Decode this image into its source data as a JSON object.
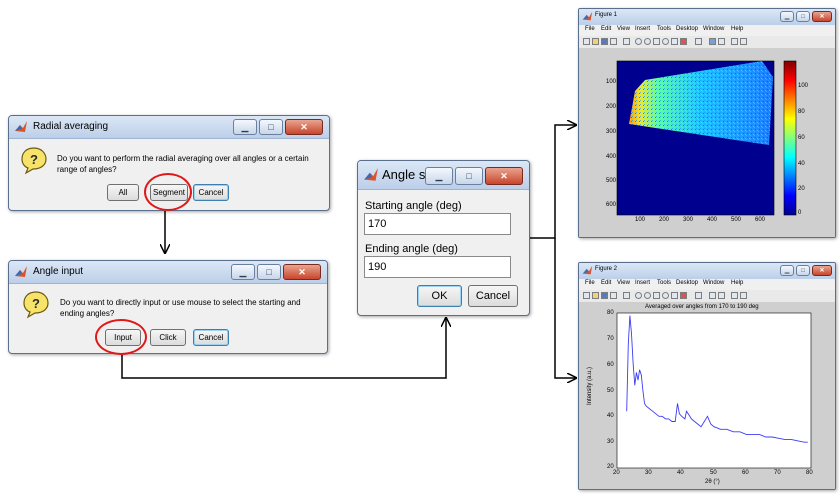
{
  "dialog_radial": {
    "title": "Radial averaging",
    "message_line1": "Do you want to perform the radial averaging over all angles or a certain",
    "message_line2": "range of angles?",
    "buttons": [
      "All",
      "Segment",
      "Cancel"
    ]
  },
  "dialog_angle_input": {
    "title": "Angle input",
    "message_line1": "Do you want to directly input or use mouse to select the starting and",
    "message_line2": "ending angles?",
    "buttons": [
      "Input",
      "Click",
      "Cancel"
    ]
  },
  "dialog_angle_select": {
    "title": "Angle s...",
    "start_label": "Starting angle (deg)",
    "start_value": "170",
    "end_label": "Ending angle (deg)",
    "end_value": "190",
    "ok_label": "OK",
    "cancel_label": "Cancel"
  },
  "figure1": {
    "title": "Figure 1",
    "menu": [
      "File",
      "Edit",
      "View",
      "Insert",
      "Tools",
      "Desktop",
      "Window",
      "Help"
    ],
    "y_ticks": [
      "100",
      "200",
      "300",
      "400",
      "500",
      "600"
    ],
    "x_ticks": [
      "100",
      "200",
      "300",
      "400",
      "500",
      "600"
    ],
    "colorbar_ticks": [
      "100",
      "80",
      "60",
      "40",
      "20",
      "0"
    ],
    "colormap": "jet"
  },
  "figure2": {
    "title": "Figure 2",
    "menu": [
      "File",
      "Edit",
      "View",
      "Insert",
      "Tools",
      "Desktop",
      "Window",
      "Help"
    ],
    "plot_title": "Averaged over angles from 170 to 190 deg",
    "ylabel": "Intensity (a.u.)",
    "xlabel": "2θ (°)",
    "y_ticks": [
      "80",
      "70",
      "60",
      "50",
      "40",
      "30",
      "20"
    ],
    "x_ticks": [
      "20",
      "30",
      "40",
      "50",
      "60",
      "70",
      "80"
    ]
  },
  "chart_data": {
    "type": "line",
    "title": "Averaged over angles from 170 to 190 deg",
    "xlabel": "2θ (°)",
    "ylabel": "Intensity (a.u.)",
    "xlim": [
      20,
      80
    ],
    "ylim": [
      20,
      80
    ],
    "series": [
      {
        "color": "#3b3bf5",
        "x": [
          23.0,
          23.5,
          24.0,
          24.5,
          25.0,
          25.5,
          26.0,
          26.5,
          27.0,
          27.5,
          28.0,
          28.5,
          29.0,
          30,
          31,
          32,
          33,
          34,
          35,
          36,
          37,
          38,
          38.7,
          39.3,
          40,
          41,
          41.5,
          42.5,
          43,
          44,
          45,
          46,
          47,
          48,
          49,
          50,
          52,
          54,
          56,
          58,
          60,
          62,
          64,
          66,
          68,
          70,
          72,
          74,
          76,
          78,
          79
        ],
        "y": [
          42,
          68,
          79,
          72,
          60,
          52,
          57,
          54,
          58,
          56,
          50,
          45,
          44,
          43,
          42,
          41,
          40,
          40,
          39,
          39,
          38,
          38,
          45,
          41,
          40,
          39,
          42,
          40,
          39,
          38,
          37,
          36,
          38,
          40,
          37,
          36,
          35,
          35,
          34,
          34,
          33,
          33,
          33,
          32,
          32,
          31.5,
          31,
          31,
          30.5,
          30,
          30
        ]
      }
    ]
  },
  "colors": {
    "close_button": "#c8452c",
    "highlight_ring": "#e01818",
    "titlebar": "#bccfe9",
    "arrow": "#000000"
  }
}
